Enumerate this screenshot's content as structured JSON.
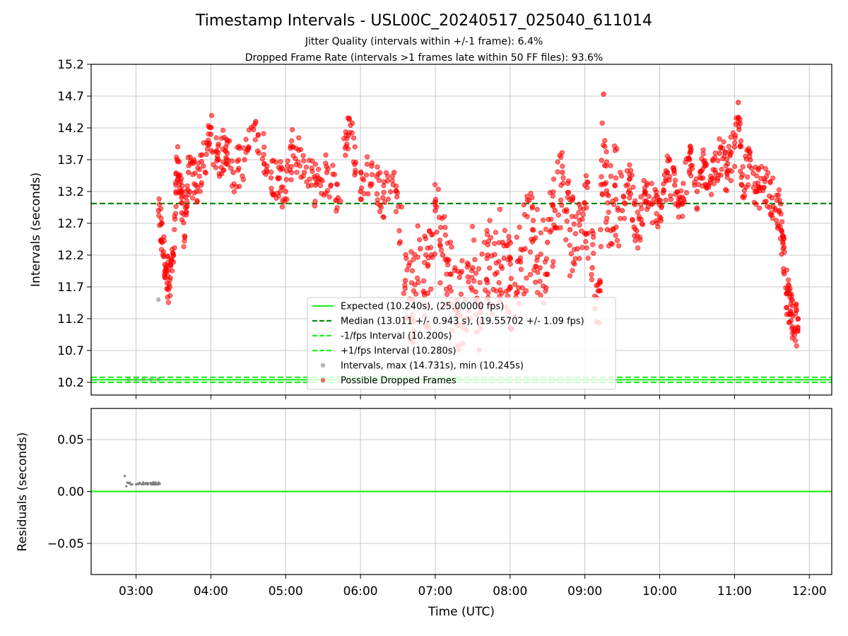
{
  "title": "Timestamp Intervals - USL00C_20240517_025040_611014",
  "subtitle_1": "Jitter Quality (intervals within +/-1 frame): 6.4%",
  "subtitle_2": "Dropped Frame Rate (intervals >1 frames late within 50 FF files): 93.6%",
  "colors": {
    "expected": "#22ee22",
    "median": "#118811",
    "interval_lines": "#22ee22",
    "dropped": "#ff0000",
    "normal": "#808080",
    "grid": "#c8c8c8"
  },
  "chart_data": [
    {
      "type": "scatter",
      "ylabel": "Intervals (seconds)",
      "xlabel": "",
      "x_ticks": [
        "03:00",
        "04:00",
        "05:00",
        "06:00",
        "07:00",
        "08:00",
        "09:00",
        "10:00",
        "11:00",
        "12:00"
      ],
      "y_ticks": [
        "10.2",
        "10.7",
        "11.2",
        "11.7",
        "12.2",
        "12.7",
        "13.2",
        "13.7",
        "14.2",
        "14.7",
        "15.2"
      ],
      "xlim_hours": [
        2.4,
        12.3
      ],
      "ylim": [
        10.0,
        15.2
      ],
      "grid": true,
      "legend_position": "lower-center",
      "reference_lines": {
        "expected": 10.24,
        "median": 13.011,
        "minus_one_fps": 10.2,
        "plus_one_fps": 10.28
      },
      "legend": [
        {
          "label": "Expected (10.240s), (25.00000 fps)",
          "style": "solid-line",
          "color": "#22ee22"
        },
        {
          "label": "Median (13.011 +/- 0.943 s), (19.55702 +/- 1.09 fps)",
          "style": "dashed-line",
          "color": "#118811"
        },
        {
          "label": "-1/fps Interval (10.200s)",
          "style": "dashed-line",
          "color": "#22ee22"
        },
        {
          "label": "+1/fps Interval (10.280s)",
          "style": "dashed-line",
          "color": "#22ee22"
        },
        {
          "label": "Intervals, max (14.731s), min (10.245s)",
          "style": "marker",
          "color": "#808080"
        },
        {
          "label": "Possible Dropped Frames",
          "style": "marker",
          "color": "#ff0000"
        }
      ],
      "series": [
        {
          "name": "Possible Dropped Frames",
          "points_sampled": [
            [
              3.3,
              12.9
            ],
            [
              3.35,
              12.4
            ],
            [
              3.4,
              12.0
            ],
            [
              3.45,
              11.7
            ],
            [
              3.5,
              12.2
            ],
            [
              3.55,
              13.7
            ],
            [
              3.6,
              13.2
            ],
            [
              3.65,
              12.5
            ],
            [
              3.7,
              13.5
            ],
            [
              3.8,
              13.3
            ],
            [
              3.9,
              13.6
            ],
            [
              4.0,
              14.1
            ],
            [
              4.1,
              13.7
            ],
            [
              4.2,
              13.9
            ],
            [
              4.3,
              13.5
            ],
            [
              4.45,
              13.7
            ],
            [
              4.6,
              14.3
            ],
            [
              4.75,
              13.6
            ],
            [
              4.9,
              13.4
            ],
            [
              5.0,
              13.2
            ],
            [
              5.1,
              13.9
            ],
            [
              5.25,
              13.5
            ],
            [
              5.4,
              13.3
            ],
            [
              5.55,
              13.5
            ],
            [
              5.7,
              13.1
            ],
            [
              5.85,
              14.35
            ],
            [
              6.0,
              13.2
            ],
            [
              6.15,
              13.6
            ],
            [
              6.3,
              13.1
            ],
            [
              6.45,
              13.5
            ],
            [
              6.6,
              11.8
            ],
            [
              6.7,
              11.5
            ],
            [
              6.8,
              12.3
            ],
            [
              6.9,
              11.6
            ],
            [
              7.0,
              12.9
            ],
            [
              7.1,
              12.2
            ],
            [
              7.2,
              11.9
            ],
            [
              7.3,
              11.3
            ],
            [
              7.4,
              11.5
            ],
            [
              7.5,
              12.0
            ],
            [
              7.6,
              11.3
            ],
            [
              7.7,
              12.2
            ],
            [
              7.8,
              11.9
            ],
            [
              7.9,
              12.4
            ],
            [
              8.0,
              11.7
            ],
            [
              8.1,
              12.1
            ],
            [
              8.2,
              12.3
            ],
            [
              8.3,
              12.6
            ],
            [
              8.4,
              12.0
            ],
            [
              8.5,
              12.4
            ],
            [
              8.6,
              12.9
            ],
            [
              8.7,
              13.5
            ],
            [
              8.8,
              12.6
            ],
            [
              8.9,
              12.3
            ],
            [
              9.0,
              13.3
            ],
            [
              9.1,
              12.0
            ],
            [
              9.2,
              11.8
            ],
            [
              9.25,
              14.73
            ],
            [
              9.3,
              12.6
            ],
            [
              9.4,
              13.3
            ],
            [
              9.5,
              12.9
            ],
            [
              9.6,
              13.4
            ],
            [
              9.7,
              12.5
            ],
            [
              9.8,
              13.2
            ],
            [
              9.9,
              13.0
            ],
            [
              10.0,
              12.8
            ],
            [
              10.1,
              13.5
            ],
            [
              10.2,
              13.3
            ],
            [
              10.3,
              13.0
            ],
            [
              10.4,
              13.7
            ],
            [
              10.5,
              13.2
            ],
            [
              10.6,
              13.6
            ],
            [
              10.7,
              13.4
            ],
            [
              10.8,
              13.8
            ],
            [
              10.9,
              13.5
            ],
            [
              11.0,
              13.9
            ],
            [
              11.05,
              14.6
            ],
            [
              11.1,
              13.3
            ],
            [
              11.2,
              13.6
            ],
            [
              11.3,
              13.2
            ],
            [
              11.4,
              13.4
            ],
            [
              11.5,
              13.1
            ],
            [
              11.6,
              12.9
            ],
            [
              11.65,
              12.3
            ],
            [
              11.7,
              11.6
            ],
            [
              11.75,
              11.3
            ],
            [
              11.8,
              11.0
            ],
            [
              11.85,
              11.2
            ]
          ]
        },
        {
          "name": "Intervals",
          "points_sampled": [
            [
              3.3,
              11.5
            ],
            [
              2.9,
              10.245
            ],
            [
              3.0,
              10.25
            ],
            [
              3.1,
              10.25
            ],
            [
              3.2,
              10.25
            ],
            [
              3.3,
              10.25
            ]
          ]
        }
      ]
    },
    {
      "type": "scatter",
      "ylabel": "Residuals (seconds)",
      "xlabel": "Time (UTC)",
      "x_ticks": [
        "03:00",
        "04:00",
        "05:00",
        "06:00",
        "07:00",
        "08:00",
        "09:00",
        "10:00",
        "11:00",
        "12:00"
      ],
      "y_ticks": [
        "0.05",
        "0.00",
        "−0.05"
      ],
      "xlim_hours": [
        2.4,
        12.3
      ],
      "ylim": [
        -0.08,
        0.08
      ],
      "zero_line": 0.0,
      "grid": true,
      "series": [
        {
          "name": "Residuals",
          "points_sampled": [
            [
              2.85,
              0.015
            ],
            [
              2.87,
              0.005
            ],
            [
              2.9,
              0.008
            ],
            [
              2.95,
              0.007
            ],
            [
              3.0,
              0.007
            ],
            [
              3.05,
              0.008
            ],
            [
              3.1,
              0.007
            ],
            [
              3.15,
              0.008
            ],
            [
              3.2,
              0.007
            ],
            [
              3.25,
              0.007
            ],
            [
              3.3,
              0.007
            ]
          ]
        }
      ]
    }
  ]
}
